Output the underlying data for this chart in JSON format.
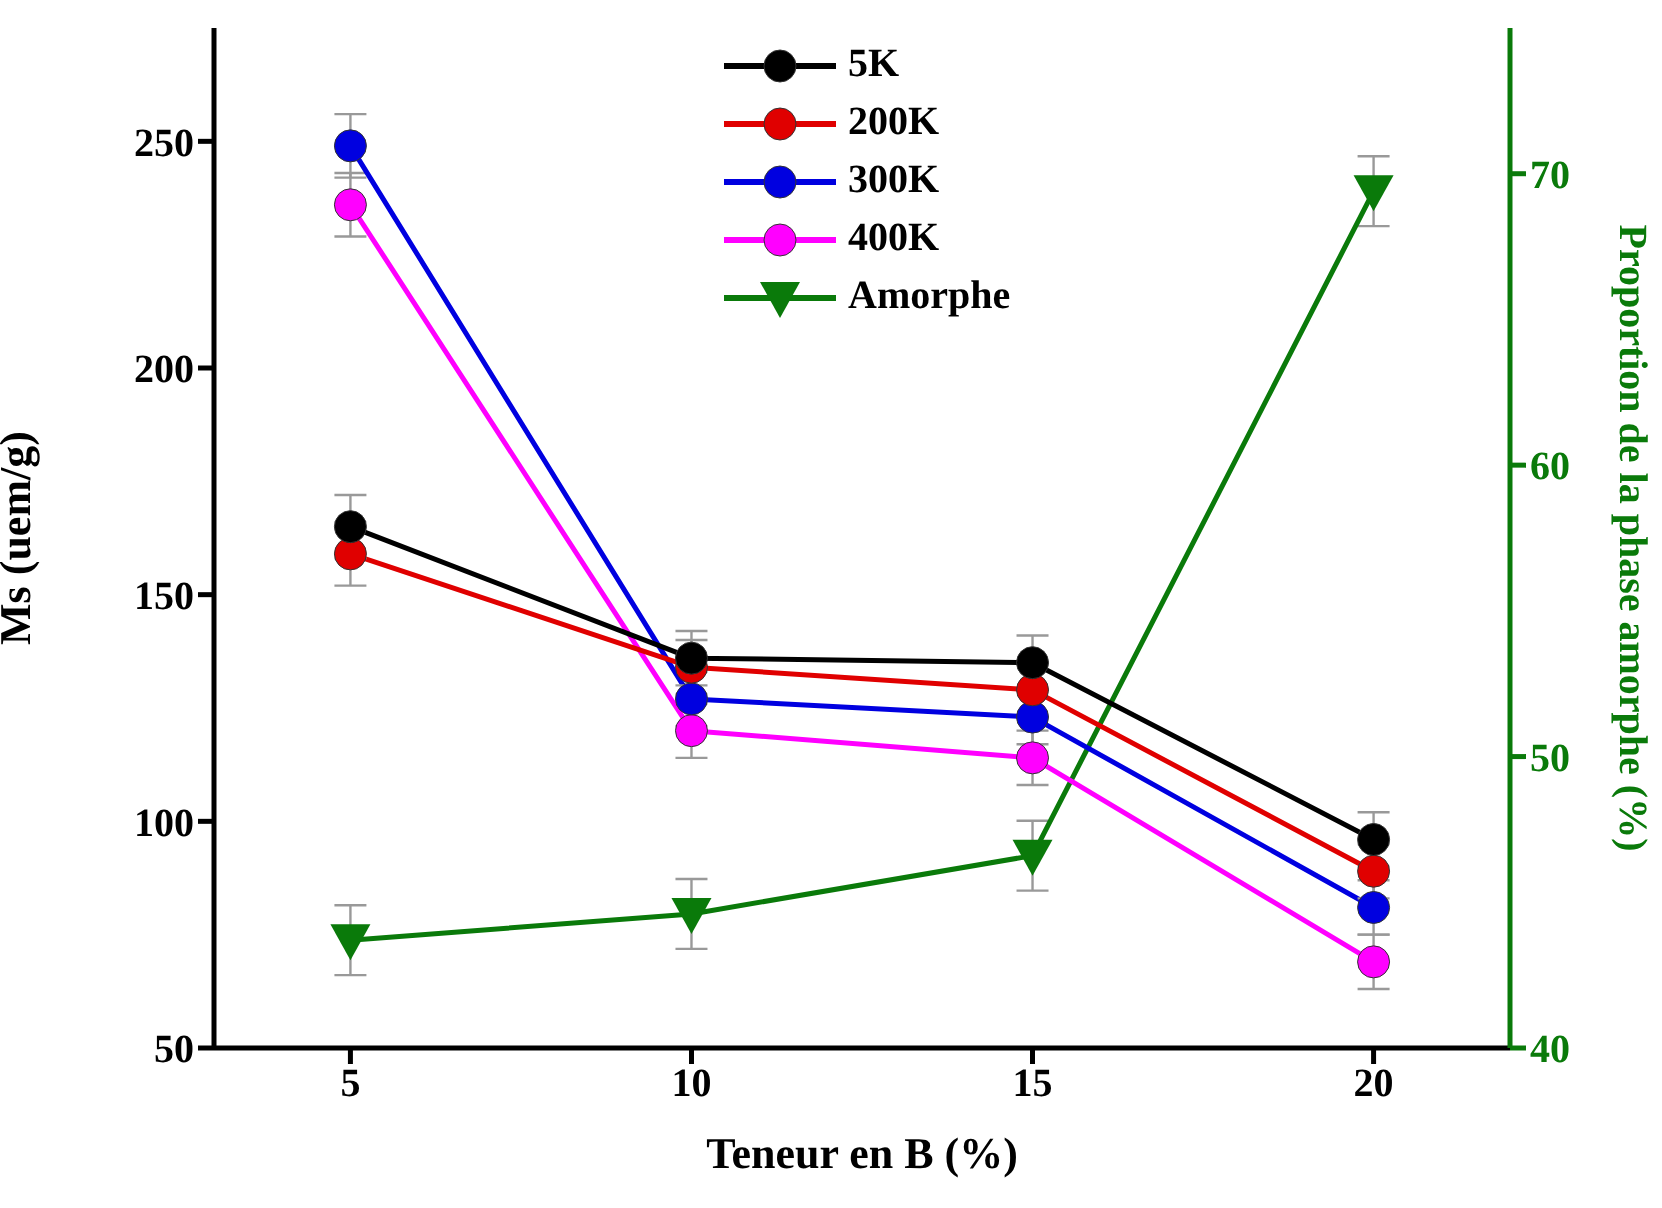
{
  "chart_data": {
    "type": "line",
    "xlabel": "Teneur en B (%)",
    "ylabel": "Ms (uem/g)",
    "y2label": "Proportion de la phase amorphe (%)",
    "x": [
      5,
      10,
      15,
      20
    ],
    "series": [
      {
        "name": "5K",
        "color": "#000000",
        "marker": "circle",
        "values": [
          165,
          136,
          135,
          96
        ],
        "errors": [
          7,
          6,
          6,
          6
        ]
      },
      {
        "name": "200K",
        "color": "#e00000",
        "marker": "circle",
        "values": [
          159,
          134,
          129,
          89
        ],
        "errors": [
          7,
          6,
          6,
          6
        ]
      },
      {
        "name": "300K",
        "color": "#0000e0",
        "marker": "circle",
        "values": [
          249,
          127,
          123,
          81
        ],
        "errors": [
          7,
          6,
          6,
          6
        ]
      },
      {
        "name": "400K",
        "color": "#ff00ff",
        "marker": "circle",
        "values": [
          236,
          120,
          114,
          69
        ],
        "errors": [
          7,
          6,
          6,
          6
        ]
      },
      {
        "name": "Amorphe",
        "color": "#0a7a0a",
        "marker": "triangle",
        "axis": "y2",
        "values": [
          43.7,
          44.6,
          46.6,
          69.4
        ],
        "errors": [
          1.2,
          1.2,
          1.2,
          1.2
        ]
      }
    ],
    "xlim": [
      3,
      22
    ],
    "xticks": [
      5,
      10,
      15,
      20
    ],
    "ylim": [
      50,
      275
    ],
    "yticks": [
      50,
      100,
      150,
      200,
      250
    ],
    "y2lim": [
      40,
      75
    ],
    "y2ticks": [
      40,
      50,
      60,
      70
    ],
    "grid": false,
    "legend": "top"
  }
}
